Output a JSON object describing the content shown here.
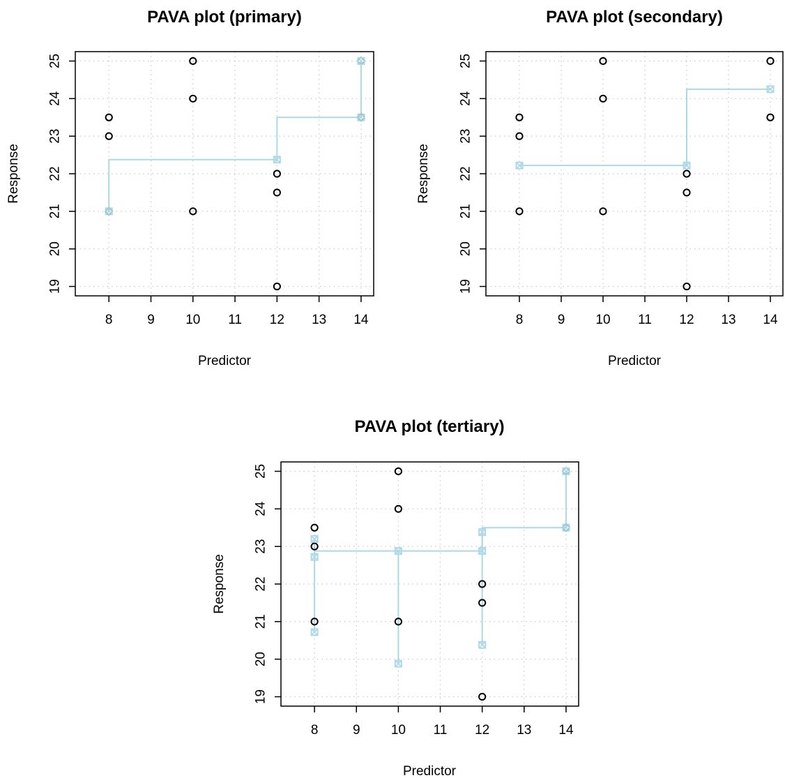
{
  "chart_data": [
    {
      "type": "scatter",
      "title": "PAVA plot (primary)",
      "xlabel": "Predictor",
      "ylabel": "Response",
      "xlim": [
        7.2,
        14.3
      ],
      "ylim": [
        18.75,
        25.25
      ],
      "x_ticks": [
        8,
        9,
        10,
        11,
        12,
        13,
        14
      ],
      "y_ticks": [
        19,
        20,
        21,
        22,
        23,
        24,
        25
      ],
      "grid": true,
      "observed": [
        {
          "x": 8,
          "y": 23.5
        },
        {
          "x": 8,
          "y": 23
        },
        {
          "x": 8,
          "y": 21
        },
        {
          "x": 10,
          "y": 25
        },
        {
          "x": 10,
          "y": 24
        },
        {
          "x": 10,
          "y": 21
        },
        {
          "x": 12,
          "y": 22
        },
        {
          "x": 12,
          "y": 21.5
        },
        {
          "x": 12,
          "y": 19
        },
        {
          "x": 14,
          "y": 25
        },
        {
          "x": 14,
          "y": 23.5
        }
      ],
      "fitted_line": [
        {
          "x": 8,
          "y": 21
        },
        {
          "x": 8,
          "y": 22.375
        },
        {
          "x": 12,
          "y": 22.375
        },
        {
          "x": 12,
          "y": 23.5
        },
        {
          "x": 14,
          "y": 23.5
        },
        {
          "x": 14,
          "y": 25
        }
      ],
      "fitted_points": [
        {
          "x": 8,
          "y": 21
        },
        {
          "x": 12,
          "y": 22.375
        },
        {
          "x": 14,
          "y": 23.5
        },
        {
          "x": 14,
          "y": 25
        }
      ],
      "colors": {
        "observed": "#000000",
        "fitted": "#add8e6"
      }
    },
    {
      "type": "scatter",
      "title": "PAVA plot (secondary)",
      "xlabel": "Predictor",
      "ylabel": "Response",
      "xlim": [
        7.2,
        14.3
      ],
      "ylim": [
        18.75,
        25.25
      ],
      "x_ticks": [
        8,
        9,
        10,
        11,
        12,
        13,
        14
      ],
      "y_ticks": [
        19,
        20,
        21,
        22,
        23,
        24,
        25
      ],
      "grid": true,
      "observed": [
        {
          "x": 8,
          "y": 23.5
        },
        {
          "x": 8,
          "y": 23
        },
        {
          "x": 8,
          "y": 21
        },
        {
          "x": 10,
          "y": 25
        },
        {
          "x": 10,
          "y": 24
        },
        {
          "x": 10,
          "y": 21
        },
        {
          "x": 12,
          "y": 22
        },
        {
          "x": 12,
          "y": 21.5
        },
        {
          "x": 12,
          "y": 19
        },
        {
          "x": 14,
          "y": 25
        },
        {
          "x": 14,
          "y": 23.5
        }
      ],
      "fitted_line": [
        {
          "x": 8,
          "y": 22.22
        },
        {
          "x": 12,
          "y": 22.22
        },
        {
          "x": 12,
          "y": 24.25
        },
        {
          "x": 14,
          "y": 24.25
        }
      ],
      "fitted_points": [
        {
          "x": 8,
          "y": 22.22
        },
        {
          "x": 12,
          "y": 22.22
        },
        {
          "x": 14,
          "y": 24.25
        }
      ],
      "colors": {
        "observed": "#000000",
        "fitted": "#add8e6"
      }
    },
    {
      "type": "scatter",
      "title": "PAVA plot (tertiary)",
      "xlabel": "Predictor",
      "ylabel": "Response",
      "xlim": [
        7.2,
        14.3
      ],
      "ylim": [
        18.75,
        25.25
      ],
      "x_ticks": [
        8,
        9,
        10,
        11,
        12,
        13,
        14
      ],
      "y_ticks": [
        19,
        20,
        21,
        22,
        23,
        24,
        25
      ],
      "grid": true,
      "observed": [
        {
          "x": 8,
          "y": 23.5
        },
        {
          "x": 8,
          "y": 23
        },
        {
          "x": 8,
          "y": 21
        },
        {
          "x": 10,
          "y": 25
        },
        {
          "x": 10,
          "y": 24
        },
        {
          "x": 10,
          "y": 21
        },
        {
          "x": 12,
          "y": 22
        },
        {
          "x": 12,
          "y": 21.5
        },
        {
          "x": 12,
          "y": 19
        },
        {
          "x": 14,
          "y": 25
        },
        {
          "x": 14,
          "y": 23.5
        }
      ],
      "fitted_segments": [
        [
          {
            "x": 8,
            "y": 20.72
          },
          {
            "x": 8,
            "y": 23.2
          }
        ],
        [
          {
            "x": 10,
            "y": 19.88
          },
          {
            "x": 10,
            "y": 22.88
          }
        ],
        [
          {
            "x": 12,
            "y": 20.38
          },
          {
            "x": 12,
            "y": 23.38
          }
        ],
        [
          {
            "x": 8,
            "y": 22.88
          },
          {
            "x": 12,
            "y": 22.88
          },
          {
            "x": 12,
            "y": 23.5
          },
          {
            "x": 14,
            "y": 23.5
          },
          {
            "x": 14,
            "y": 25
          }
        ]
      ],
      "fitted_points": [
        {
          "x": 8,
          "y": 23.2
        },
        {
          "x": 8,
          "y": 22.72
        },
        {
          "x": 8,
          "y": 20.72
        },
        {
          "x": 10,
          "y": 22.88
        },
        {
          "x": 10,
          "y": 19.88
        },
        {
          "x": 12,
          "y": 23.38
        },
        {
          "x": 12,
          "y": 22.88
        },
        {
          "x": 12,
          "y": 20.38
        },
        {
          "x": 14,
          "y": 23.5
        },
        {
          "x": 14,
          "y": 25
        }
      ],
      "colors": {
        "observed": "#000000",
        "fitted": "#add8e6"
      }
    }
  ]
}
